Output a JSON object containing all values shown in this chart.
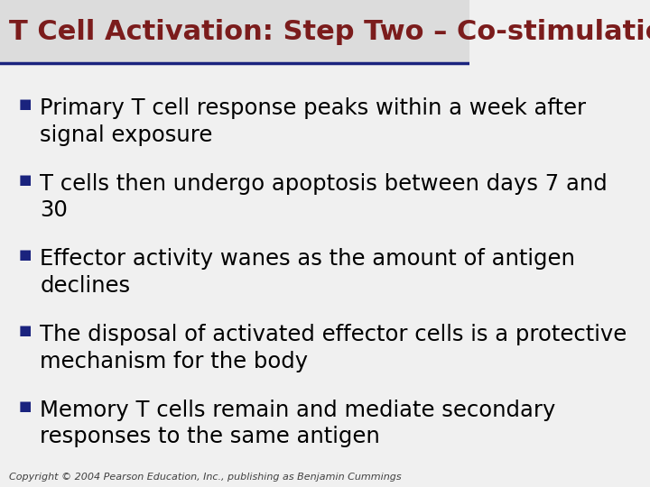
{
  "title": "T Cell Activation: Step Two – Co-stimulation",
  "title_color": "#7B1C1C",
  "title_fontsize": 22,
  "background_color": "#F0F0F0",
  "header_bg_color": "#DCDCDC",
  "separator_color": "#1A237E",
  "bullet_color": "#1A237E",
  "body_color": "#000000",
  "body_fontsize": 17.5,
  "copyright_text": "Copyright © 2004 Pearson Education, Inc., publishing as Benjamin Cummings",
  "copyright_fontsize": 8,
  "bullets": [
    "Primary T cell response peaks within a week after\nsignal exposure",
    "T cells then undergo apoptosis between days 7 and\n30",
    "Effector activity wanes as the amount of antigen\ndeclines",
    "The disposal of activated effector cells is a protective\nmechanism for the body",
    "Memory T cells remain and mediate secondary\nresponses to the same antigen"
  ]
}
